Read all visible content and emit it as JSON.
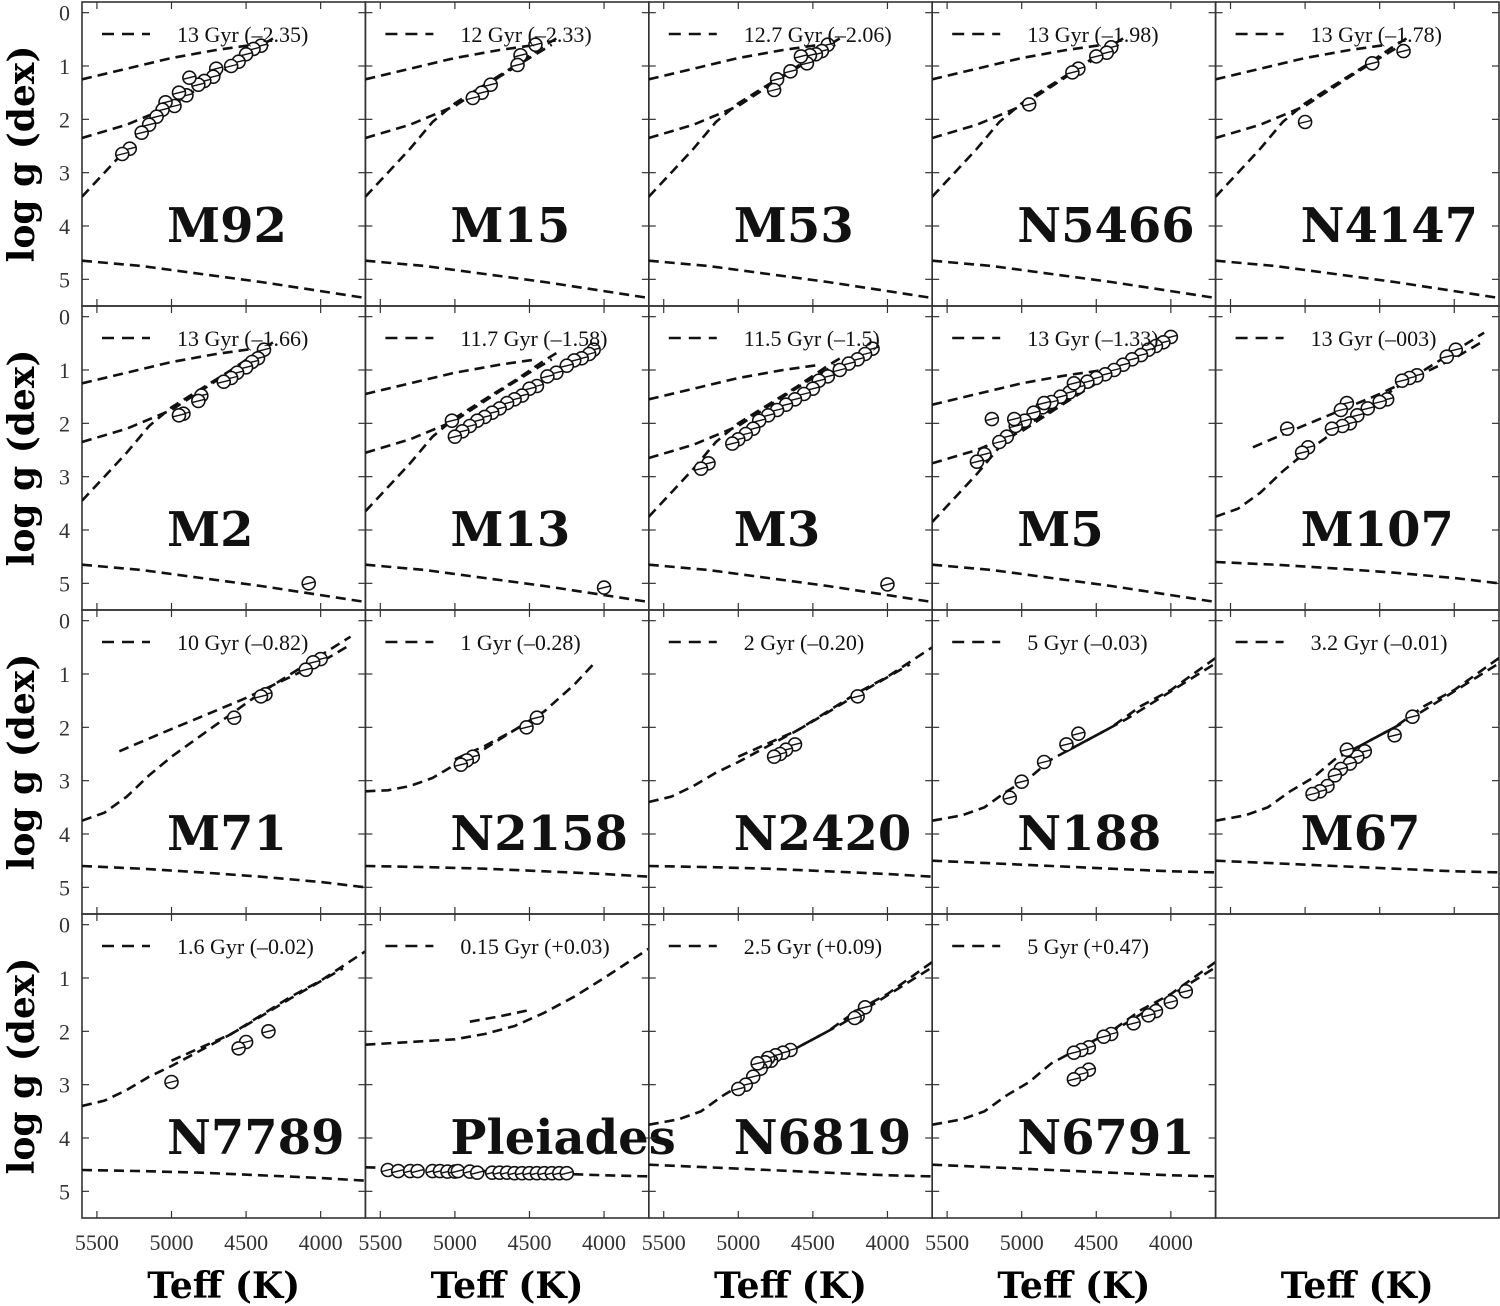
{
  "figure": {
    "ylabel": "log g (dex)",
    "xlabel": "Teff (K)"
  },
  "chart_data": {
    "type": "scatter",
    "grid": false,
    "xlim": [
      5600,
      3700
    ],
    "ylim": [
      5.5,
      -0.2
    ],
    "x_ticks": [
      5500,
      5000,
      4500,
      4000
    ],
    "y_ticks": [
      0,
      1,
      2,
      3,
      4,
      5
    ],
    "panels": [
      {
        "cluster": "M92",
        "legend": "13 Gyr (–2.35)",
        "iso": "metal_poor",
        "offset": 0.0,
        "points": [
          [
            4400,
            0.62
          ],
          [
            4450,
            0.68
          ],
          [
            4500,
            0.78
          ],
          [
            4550,
            0.92
          ],
          [
            4600,
            1.0
          ],
          [
            4700,
            1.05
          ],
          [
            4720,
            1.2
          ],
          [
            4780,
            1.28
          ],
          [
            4820,
            1.35
          ],
          [
            4880,
            1.22
          ],
          [
            4900,
            1.55
          ],
          [
            4950,
            1.5
          ],
          [
            4980,
            1.75
          ],
          [
            5040,
            1.68
          ],
          [
            5060,
            1.82
          ],
          [
            5100,
            1.95
          ],
          [
            5150,
            2.1
          ],
          [
            5200,
            2.25
          ],
          [
            5280,
            2.55
          ],
          [
            5330,
            2.65
          ]
        ]
      },
      {
        "cluster": "M15",
        "legend": "12 Gyr (–2.33)",
        "iso": "metal_poor",
        "offset": 0.0,
        "points": [
          [
            4460,
            0.6
          ],
          [
            4560,
            0.8
          ],
          [
            4580,
            0.98
          ],
          [
            4760,
            1.35
          ],
          [
            4820,
            1.5
          ],
          [
            4880,
            1.6
          ]
        ]
      },
      {
        "cluster": "M53",
        "legend": "12.7 Gyr (–2.06)",
        "iso": "metal_poor",
        "offset": 0.0,
        "points": [
          [
            4400,
            0.6
          ],
          [
            4440,
            0.72
          ],
          [
            4480,
            0.78
          ],
          [
            4520,
            0.8
          ],
          [
            4540,
            0.95
          ],
          [
            4580,
            0.82
          ],
          [
            4650,
            1.1
          ],
          [
            4740,
            1.25
          ],
          [
            4760,
            1.45
          ]
        ]
      },
      {
        "cluster": "N5466",
        "legend": "13 Gyr (–1.98)",
        "iso": "metal_poor",
        "offset": 0.0,
        "points": [
          [
            4400,
            0.65
          ],
          [
            4430,
            0.75
          ],
          [
            4500,
            0.82
          ],
          [
            4620,
            1.05
          ],
          [
            4660,
            1.12
          ],
          [
            4950,
            1.72
          ]
        ]
      },
      {
        "cluster": "N4147",
        "legend": "13 Gyr (–1.78)",
        "iso": "metal_poor",
        "offset": 0.0,
        "points": [
          [
            4340,
            0.72
          ],
          [
            4550,
            0.95
          ],
          [
            5000,
            2.05
          ]
        ]
      },
      {
        "cluster": "M2",
        "legend": "13 Gyr (–1.66)",
        "iso": "metal_poor",
        "offset": 0.0,
        "points": [
          [
            4380,
            0.62
          ],
          [
            4420,
            0.78
          ],
          [
            4460,
            0.85
          ],
          [
            4500,
            0.95
          ],
          [
            4560,
            1.05
          ],
          [
            4600,
            1.15
          ],
          [
            4650,
            1.22
          ],
          [
            4800,
            1.48
          ],
          [
            4820,
            1.58
          ],
          [
            4920,
            1.82
          ],
          [
            4950,
            1.85
          ],
          [
            4080,
            5.0
          ]
        ]
      },
      {
        "cluster": "M13",
        "legend": "11.7 Gyr (–1.58)",
        "iso": "metal_poor",
        "offset": 0.2,
        "points": [
          [
            4070,
            0.62
          ],
          [
            4100,
            0.7
          ],
          [
            4150,
            0.78
          ],
          [
            4200,
            0.82
          ],
          [
            4250,
            0.92
          ],
          [
            4320,
            1.05
          ],
          [
            4380,
            1.12
          ],
          [
            4450,
            1.3
          ],
          [
            4500,
            1.35
          ],
          [
            4550,
            1.48
          ],
          [
            4600,
            1.55
          ],
          [
            4650,
            1.62
          ],
          [
            4700,
            1.72
          ],
          [
            4750,
            1.8
          ],
          [
            4800,
            1.88
          ],
          [
            4850,
            1.95
          ],
          [
            4900,
            2.05
          ],
          [
            4950,
            2.15
          ],
          [
            5000,
            2.25
          ],
          [
            5020,
            1.95
          ],
          [
            4000,
            5.08
          ]
        ]
      },
      {
        "cluster": "M3",
        "legend": "11.5 Gyr (–1.5)",
        "iso": "metal_poor",
        "offset": 0.3,
        "points": [
          [
            4100,
            0.6
          ],
          [
            4150,
            0.7
          ],
          [
            4200,
            0.8
          ],
          [
            4260,
            0.88
          ],
          [
            4320,
            1.0
          ],
          [
            4400,
            1.12
          ],
          [
            4460,
            1.2
          ],
          [
            4500,
            1.35
          ],
          [
            4560,
            1.45
          ],
          [
            4620,
            1.55
          ],
          [
            4680,
            1.65
          ],
          [
            4740,
            1.75
          ],
          [
            4800,
            1.85
          ],
          [
            4860,
            1.95
          ],
          [
            4900,
            2.1
          ],
          [
            4950,
            2.2
          ],
          [
            5000,
            2.3
          ],
          [
            5040,
            2.38
          ],
          [
            5200,
            2.75
          ],
          [
            5250,
            2.85
          ],
          [
            4000,
            5.02
          ]
        ]
      },
      {
        "cluster": "M5",
        "legend": "13 Gyr (–1.33)",
        "iso": "metal_poor",
        "offset": 0.4,
        "points": [
          [
            4000,
            0.38
          ],
          [
            4050,
            0.48
          ],
          [
            4100,
            0.55
          ],
          [
            4150,
            0.62
          ],
          [
            4200,
            0.72
          ],
          [
            4260,
            0.8
          ],
          [
            4320,
            0.9
          ],
          [
            4380,
            1.0
          ],
          [
            4440,
            1.08
          ],
          [
            4500,
            1.15
          ],
          [
            4560,
            1.22
          ],
          [
            4620,
            1.32
          ],
          [
            4680,
            1.42
          ],
          [
            4740,
            1.5
          ],
          [
            4800,
            1.6
          ],
          [
            4860,
            1.7
          ],
          [
            4920,
            1.8
          ],
          [
            4980,
            1.95
          ],
          [
            5040,
            2.05
          ],
          [
            5100,
            2.25
          ],
          [
            5150,
            2.35
          ],
          [
            5250,
            2.58
          ],
          [
            5300,
            2.72
          ],
          [
            5050,
            1.92
          ],
          [
            5200,
            1.92
          ],
          [
            4850,
            1.62
          ],
          [
            4650,
            1.25
          ]
        ]
      },
      {
        "cluster": "M107",
        "legend": "13 Gyr (–003)",
        "iso": "metal_rich",
        "offset": 0.0,
        "points": [
          [
            3990,
            0.62
          ],
          [
            4050,
            0.75
          ],
          [
            4250,
            1.1
          ],
          [
            4300,
            1.15
          ],
          [
            4350,
            1.2
          ],
          [
            4450,
            1.55
          ],
          [
            4500,
            1.6
          ],
          [
            4580,
            1.72
          ],
          [
            4650,
            1.85
          ],
          [
            4700,
            2.0
          ],
          [
            4720,
            1.62
          ],
          [
            4750,
            2.05
          ],
          [
            4820,
            2.1
          ],
          [
            4980,
            2.45
          ],
          [
            5020,
            2.55
          ],
          [
            5120,
            2.1
          ],
          [
            4760,
            1.75
          ]
        ]
      },
      {
        "cluster": "M71",
        "legend": "10 Gyr (–0.82)",
        "iso": "metal_rich",
        "offset": 0.0,
        "points": [
          [
            4000,
            0.72
          ],
          [
            4050,
            0.78
          ],
          [
            4100,
            0.92
          ],
          [
            4370,
            1.38
          ],
          [
            4400,
            1.42
          ],
          [
            4580,
            1.82
          ]
        ]
      },
      {
        "cluster": "N2158",
        "legend": "1 Gyr (–0.28)",
        "iso": "young",
        "offset": 0.0,
        "points": [
          [
            4450,
            1.82
          ],
          [
            4520,
            2.0
          ],
          [
            4880,
            2.55
          ],
          [
            4920,
            2.62
          ],
          [
            4960,
            2.7
          ]
        ]
      },
      {
        "cluster": "N2420",
        "legend": "2 Gyr (–0.20)",
        "iso": "mid",
        "offset": 0.0,
        "points": [
          [
            4200,
            1.42
          ],
          [
            4620,
            2.32
          ],
          [
            4680,
            2.42
          ],
          [
            4720,
            2.5
          ],
          [
            4760,
            2.55
          ]
        ]
      },
      {
        "cluster": "N188",
        "legend": "5 Gyr (–0.03)",
        "iso": "old_mr",
        "offset": 0.0,
        "points": [
          [
            4620,
            2.12
          ],
          [
            4700,
            2.32
          ],
          [
            4850,
            2.65
          ],
          [
            5000,
            3.02
          ],
          [
            5080,
            3.32
          ]
        ]
      },
      {
        "cluster": "M67",
        "legend": "3.2 Gyr (–0.01)",
        "iso": "old_mr",
        "offset": 0.0,
        "points": [
          [
            4280,
            1.8
          ],
          [
            4400,
            2.15
          ],
          [
            4600,
            2.45
          ],
          [
            4650,
            2.55
          ],
          [
            4700,
            2.68
          ],
          [
            4720,
            2.42
          ],
          [
            4760,
            2.78
          ],
          [
            4800,
            2.9
          ],
          [
            4850,
            3.1
          ],
          [
            4900,
            3.2
          ],
          [
            4950,
            3.25
          ]
        ]
      },
      {
        "cluster": "N7789",
        "legend": "1.6 Gyr (–0.02)",
        "iso": "mid",
        "offset": 0.0,
        "points": [
          [
            4350,
            2.0
          ],
          [
            4500,
            2.2
          ],
          [
            4550,
            2.32
          ],
          [
            5000,
            2.95
          ]
        ]
      },
      {
        "cluster": "Pleiades",
        "legend": "0.15 Gyr (+0.03)",
        "iso": "pleiades",
        "offset": 0.0,
        "points": [
          [
            5450,
            4.6
          ],
          [
            5380,
            4.62
          ],
          [
            5300,
            4.62
          ],
          [
            5250,
            4.62
          ],
          [
            5150,
            4.62
          ],
          [
            5100,
            4.62
          ],
          [
            5050,
            4.63
          ],
          [
            5000,
            4.63
          ],
          [
            4980,
            4.62
          ],
          [
            4900,
            4.63
          ],
          [
            4850,
            4.65
          ],
          [
            4750,
            4.65
          ],
          [
            4700,
            4.65
          ],
          [
            4650,
            4.65
          ],
          [
            4600,
            4.66
          ],
          [
            4550,
            4.66
          ],
          [
            4500,
            4.66
          ],
          [
            4450,
            4.66
          ],
          [
            4400,
            4.66
          ],
          [
            4350,
            4.66
          ],
          [
            4300,
            4.66
          ],
          [
            4250,
            4.66
          ]
        ]
      },
      {
        "cluster": "N6819",
        "legend": "2.5 Gyr (+0.09)",
        "iso": "old_mr",
        "offset": 0.0,
        "points": [
          [
            4150,
            1.55
          ],
          [
            4200,
            1.72
          ],
          [
            4220,
            1.75
          ],
          [
            4650,
            2.35
          ],
          [
            4700,
            2.4
          ],
          [
            4750,
            2.45
          ],
          [
            4780,
            2.55
          ],
          [
            4800,
            2.5
          ],
          [
            4820,
            2.58
          ],
          [
            4850,
            2.7
          ],
          [
            4900,
            2.85
          ],
          [
            4950,
            3.0
          ],
          [
            5000,
            3.08
          ],
          [
            4870,
            2.6
          ]
        ]
      },
      {
        "cluster": "N6791",
        "legend": "5 Gyr (+0.47)",
        "iso": "old_mr",
        "offset": 0.0,
        "points": [
          [
            3900,
            1.25
          ],
          [
            4000,
            1.45
          ],
          [
            4100,
            1.62
          ],
          [
            4150,
            1.7
          ],
          [
            4250,
            1.85
          ],
          [
            4400,
            2.05
          ],
          [
            4450,
            2.1
          ],
          [
            4550,
            2.3
          ],
          [
            4600,
            2.35
          ],
          [
            4650,
            2.4
          ],
          [
            4550,
            2.72
          ],
          [
            4600,
            2.8
          ],
          [
            4650,
            2.9
          ]
        ]
      }
    ]
  }
}
